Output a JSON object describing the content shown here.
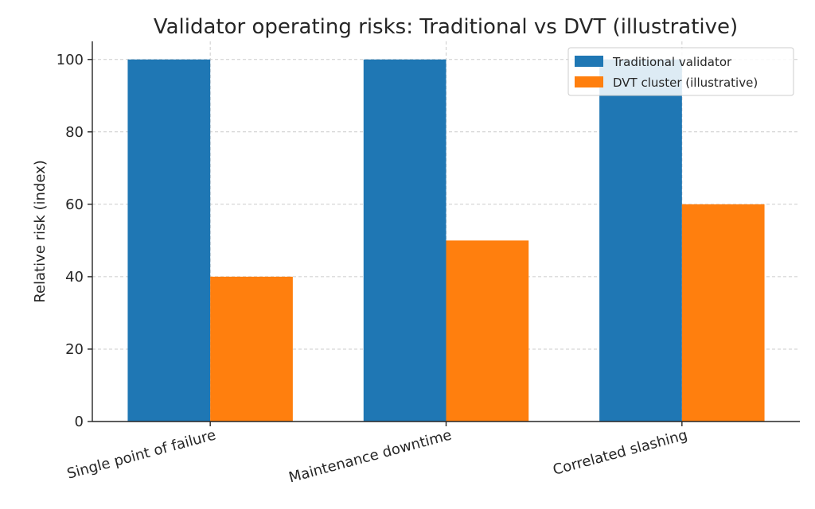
{
  "chart_data": {
    "type": "bar",
    "title": "Validator operating risks: Traditional vs DVT (illustrative)",
    "xlabel": "",
    "ylabel": "Relative risk (index)",
    "categories": [
      "Single point of failure",
      "Maintenance downtime",
      "Correlated slashing"
    ],
    "series": [
      {
        "name": "Traditional validator",
        "color": "#1f77b4",
        "values": [
          100,
          100,
          100
        ]
      },
      {
        "name": "DVT cluster (illustrative)",
        "color": "#ff7f0e",
        "values": [
          40,
          50,
          60
        ]
      }
    ],
    "ylim": [
      0,
      105
    ],
    "yticks": [
      "0",
      "20",
      "40",
      "60",
      "80",
      "100"
    ],
    "grid": true,
    "legend": "top-right"
  }
}
